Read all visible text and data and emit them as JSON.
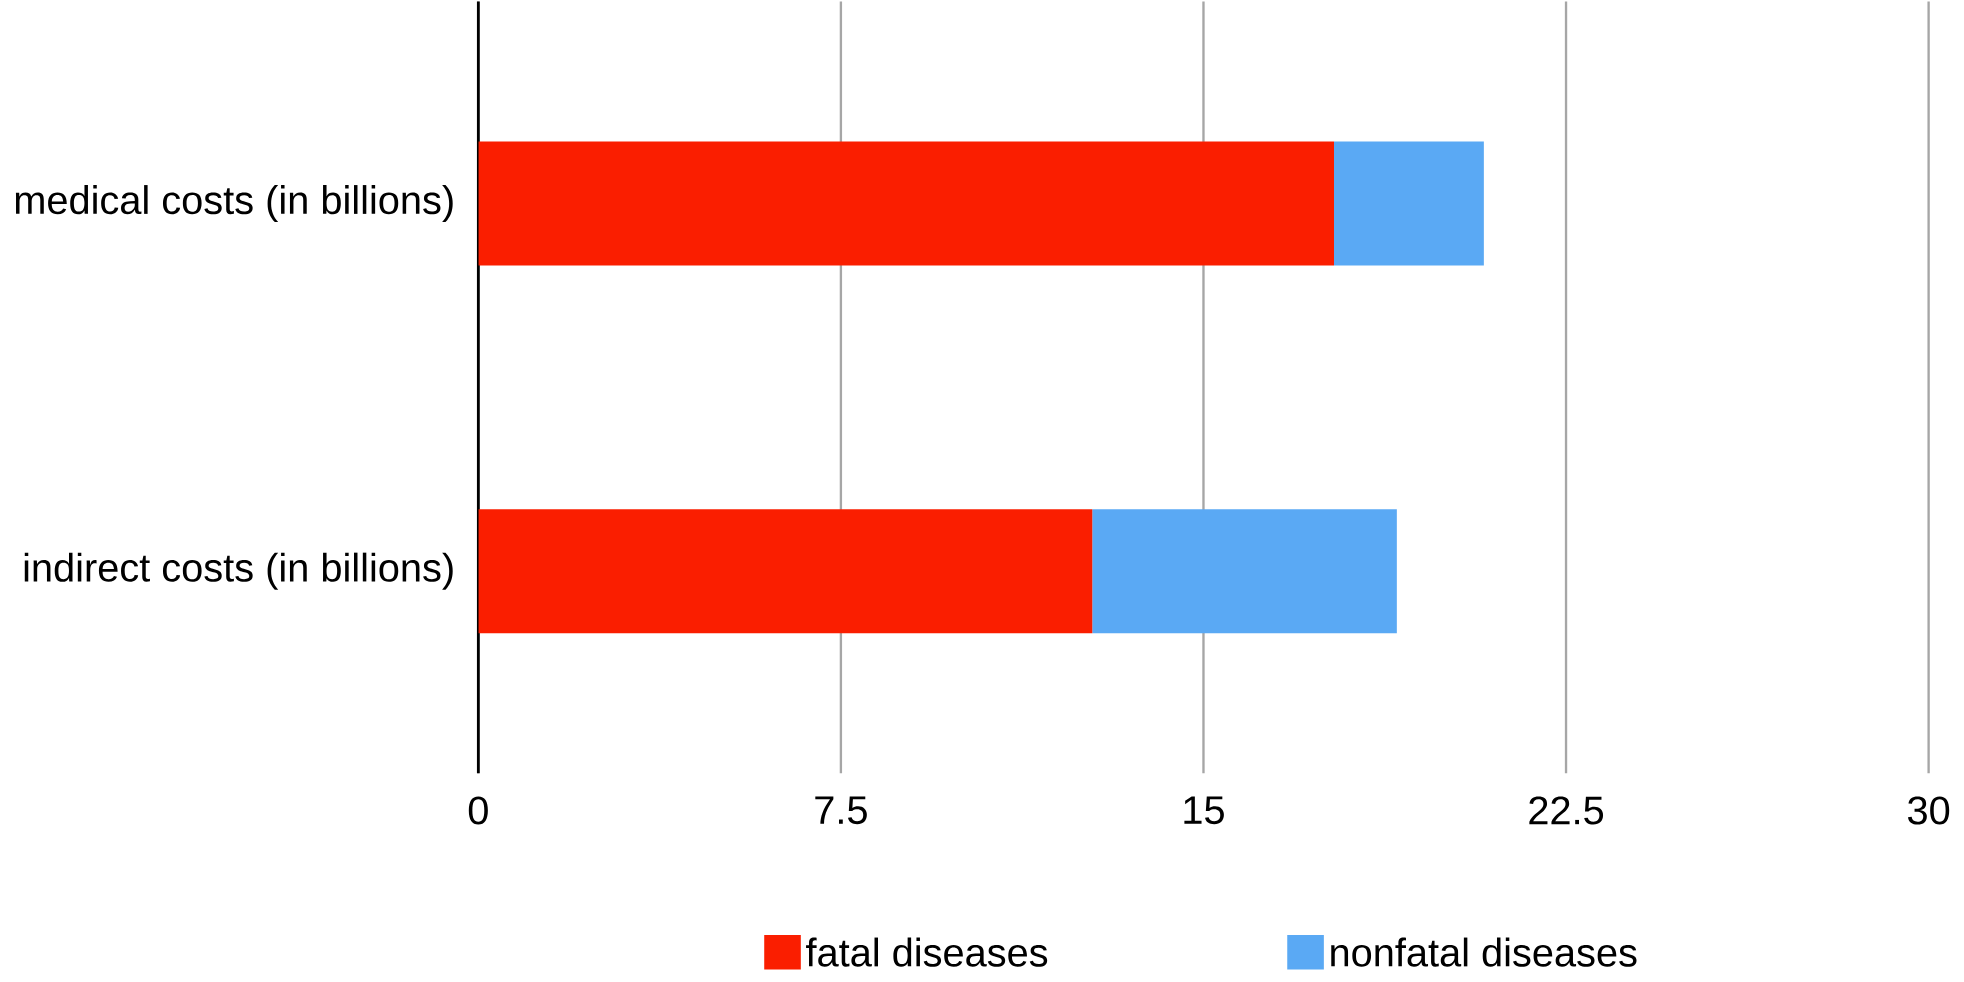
{
  "chart_data": {
    "type": "bar",
    "orientation": "horizontal",
    "stacked": true,
    "categories": [
      "medical costs (in billions)",
      "indirect costs (in billions)"
    ],
    "series": [
      {
        "name": "fatal diseases",
        "color": "#fa1e00",
        "values": [
          17.7,
          12.7
        ]
      },
      {
        "name": "nonfatal diseases",
        "color": "#5aa9f4",
        "values": [
          3.1,
          6.3
        ]
      }
    ],
    "xlim": [
      0,
      30
    ],
    "xticks": [
      0,
      7.5,
      15,
      22.5,
      30
    ],
    "grid": "x",
    "legend": "bottom"
  }
}
